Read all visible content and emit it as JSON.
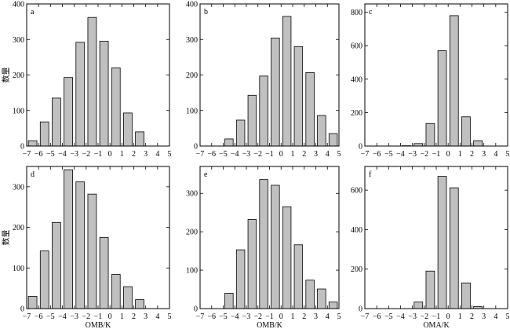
{
  "chart_data": [
    {
      "type": "bar",
      "panel": "a",
      "ylabel": "数量",
      "xlabel": "",
      "xlim": [
        -7,
        5
      ],
      "ylim": [
        0,
        400
      ],
      "xticks": [
        -7,
        -6,
        -5,
        -4,
        -3,
        -2,
        -1,
        0,
        1,
        2,
        3,
        4,
        5
      ],
      "yticks": [
        0,
        100,
        200,
        300,
        400
      ],
      "x": [
        -6.5,
        -5.5,
        -4.5,
        -3.5,
        -2.5,
        -1.5,
        -0.5,
        0.5,
        1.5,
        2.5
      ],
      "values": [
        15,
        68,
        135,
        193,
        292,
        362,
        295,
        220,
        93,
        40
      ],
      "grid": false
    },
    {
      "type": "bar",
      "panel": "b",
      "ylabel": "",
      "xlabel": "",
      "xlim": [
        -7,
        5
      ],
      "ylim": [
        0,
        400
      ],
      "xticks": [
        -7,
        -6,
        -5,
        -4,
        -3,
        -2,
        -1,
        0,
        1,
        2,
        3,
        4,
        5
      ],
      "yticks": [
        0,
        100,
        200,
        300,
        400
      ],
      "x": [
        -4.5,
        -3.5,
        -2.5,
        -1.5,
        -0.5,
        0.5,
        1.5,
        2.5,
        3.5,
        4.5
      ],
      "values": [
        20,
        73,
        143,
        197,
        304,
        365,
        280,
        207,
        86,
        35
      ],
      "grid": false
    },
    {
      "type": "bar",
      "panel": "c",
      "ylabel": "",
      "xlabel": "",
      "xlim": [
        -7,
        5
      ],
      "ylim": [
        0,
        850
      ],
      "xticks": [
        -7,
        -6,
        -5,
        -4,
        -3,
        -2,
        -1,
        0,
        1,
        2,
        3,
        4,
        5
      ],
      "yticks": [
        0,
        200,
        400,
        600,
        800
      ],
      "x": [
        -3.5,
        -2.5,
        -1.5,
        -0.5,
        0.5,
        1.5,
        2.5
      ],
      "values": [
        2,
        15,
        135,
        570,
        780,
        175,
        32
      ],
      "grid": false
    },
    {
      "type": "bar",
      "panel": "d",
      "ylabel": "数量",
      "xlabel": "OMB/K",
      "xlim": [
        -7,
        5
      ],
      "ylim": [
        0,
        350
      ],
      "xticks": [
        -7,
        -6,
        -5,
        -4,
        -3,
        -2,
        -1,
        0,
        1,
        2,
        3,
        4,
        5
      ],
      "yticks": [
        0,
        100,
        200,
        300
      ],
      "x": [
        -6.5,
        -5.5,
        -4.5,
        -3.5,
        -2.5,
        -1.5,
        -0.5,
        0.5,
        1.5,
        2.5
      ],
      "values": [
        30,
        142,
        212,
        342,
        312,
        282,
        175,
        84,
        54,
        22
      ],
      "grid": false
    },
    {
      "type": "bar",
      "panel": "e",
      "ylabel": "",
      "xlabel": "OMB/K",
      "xlim": [
        -7,
        5
      ],
      "ylim": [
        0,
        370
      ],
      "xticks": [
        -7,
        -6,
        -5,
        -4,
        -3,
        -2,
        -1,
        0,
        1,
        2,
        3,
        4,
        5
      ],
      "yticks": [
        0,
        100,
        200,
        300
      ],
      "x": [
        -4.5,
        -3.5,
        -2.5,
        -1.5,
        -0.5,
        0.5,
        1.5,
        2.5,
        3.5,
        4.5
      ],
      "values": [
        40,
        153,
        232,
        336,
        321,
        265,
        166,
        74,
        51,
        17
      ],
      "grid": false
    },
    {
      "type": "bar",
      "panel": "f",
      "ylabel": "",
      "xlabel": "OMA/K",
      "xlim": [
        -7,
        5
      ],
      "ylim": [
        0,
        720
      ],
      "xticks": [
        -7,
        -6,
        -5,
        -4,
        -3,
        -2,
        -1,
        0,
        1,
        2,
        3,
        4,
        5
      ],
      "yticks": [
        0,
        200,
        400,
        600
      ],
      "x": [
        -2.5,
        -1.5,
        -0.5,
        0.5,
        1.5,
        2.5
      ],
      "values": [
        33,
        190,
        670,
        612,
        130,
        10
      ],
      "grid": false
    }
  ]
}
